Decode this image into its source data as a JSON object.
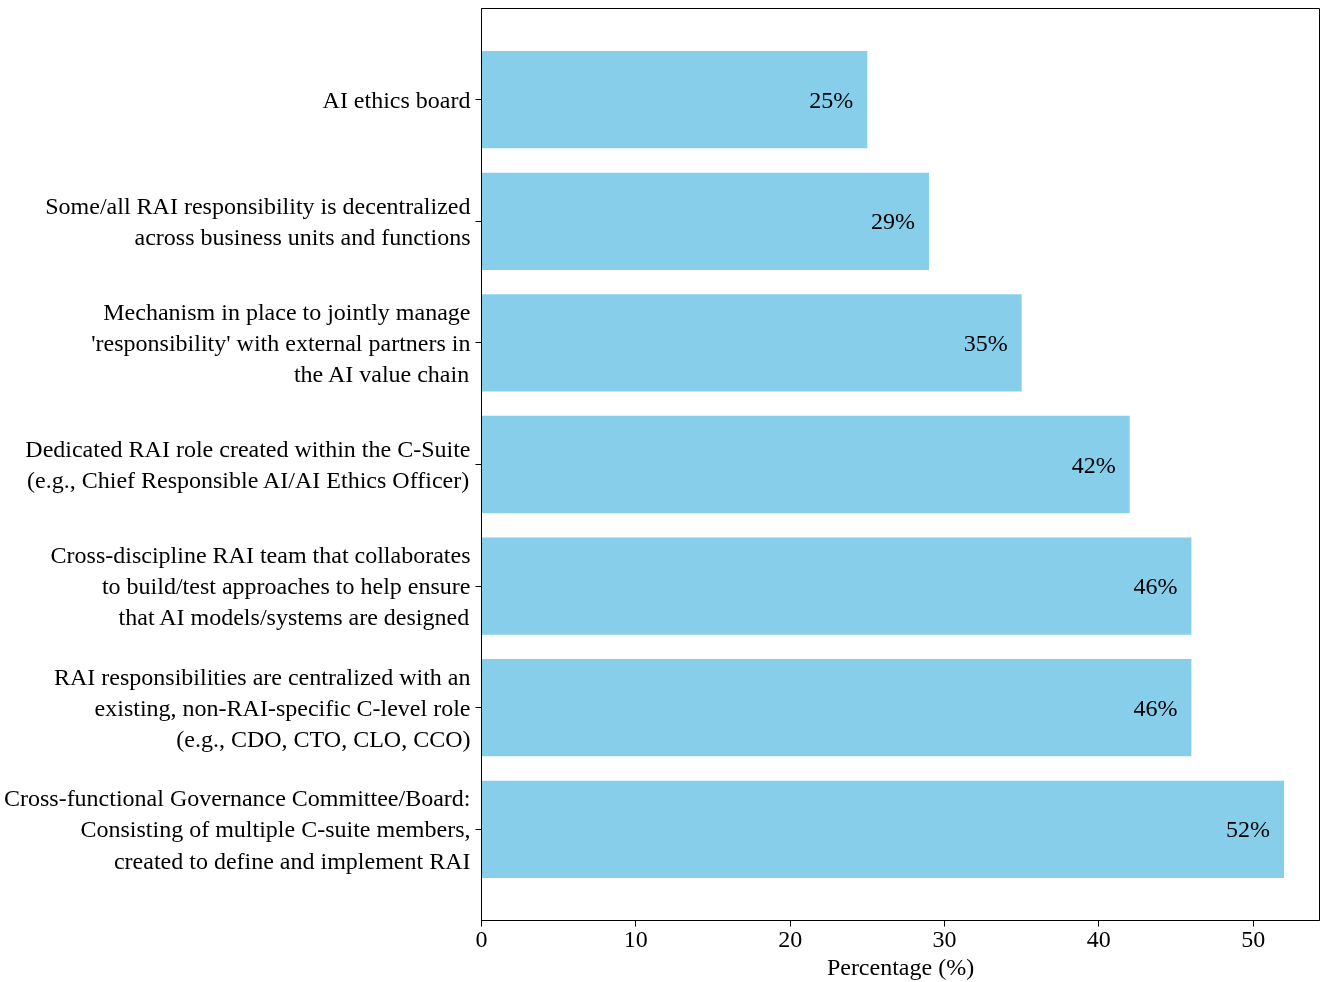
{
  "chart_data": {
    "type": "bar",
    "orientation": "horizontal",
    "xlabel": "Percentage (%)",
    "categories": [
      "AI ethics board",
      "Some/all RAI responsibility is decentralized\nacross business units and functions",
      "Mechanism in place to jointly manage\n'responsibility' with external partners in\nthe AI value chain",
      "Dedicated RAI role created within the C-Suite\n(e.g., Chief Responsible AI/AI Ethics Officer)",
      "Cross-discipline RAI team that collaborates\nto build/test approaches to help ensure\nthat AI models/systems are designed",
      "RAI responsibilities are centralized with an\nexisting, non-RAI-specific C-level role\n(e.g., CDO, CTO, CLO, CCO)",
      "Cross-functional Governance Committee/Board:\nConsisting of multiple C-suite members,\ncreated to define and implement RAI"
    ],
    "values": [
      25,
      29,
      35,
      42,
      46,
      46,
      52
    ],
    "value_labels": [
      "25%",
      "29%",
      "35%",
      "42%",
      "46%",
      "46%",
      "52%"
    ],
    "color": "#87ceeb",
    "xlim": [
      0,
      54.3
    ],
    "xticks": [
      0,
      10,
      20,
      30,
      40,
      50
    ],
    "grid": false
  }
}
